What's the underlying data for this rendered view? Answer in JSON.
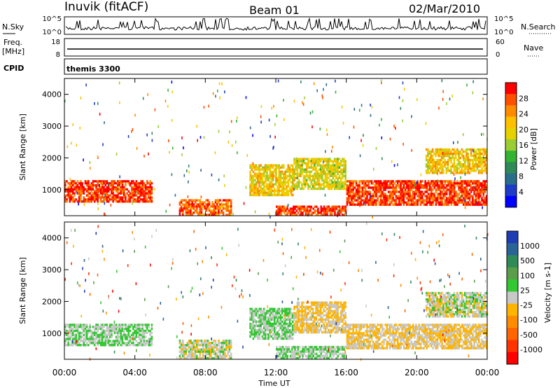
{
  "header": {
    "station": "Inuvik (fitACF)",
    "beam": "Beam 01",
    "date": "02/Mar/2010"
  },
  "noise_panel": {
    "left_label": "N.Sky",
    "left_ticks": [
      "10^5",
      "10^0"
    ],
    "right_ticks": [
      "10^5",
      "10^0"
    ],
    "right_label": "N.Search"
  },
  "freq_panel": {
    "left_label_1": "Freq.",
    "left_label_2": "[MHz]",
    "left_ticks": [
      "18",
      "8"
    ],
    "right_ticks": [
      "60",
      "0"
    ],
    "right_label": "Nave"
  },
  "cpid": {
    "label": "CPID",
    "value": "themis 3300"
  },
  "x_axis": {
    "label": "Time UT",
    "ticks": [
      "00:00",
      "04:00",
      "08:00",
      "12:00",
      "16:00",
      "20:00",
      "00:00"
    ]
  },
  "power_panel": {
    "ylabel": "Slant Range [km]",
    "yticks": [
      "4000",
      "3000",
      "2000",
      "1000"
    ],
    "colorbar_label": "Power [dB]",
    "colorbar_ticks": [
      "28",
      "24",
      "20",
      "16",
      "12",
      "8",
      "4"
    ],
    "colorbar_colors": [
      "#ff0000",
      "#ff5000",
      "#ff8c00",
      "#ffc000",
      "#e6d200",
      "#9acd32",
      "#32b432",
      "#2e8b57",
      "#2a6e8c",
      "#1e3cc8",
      "#0000ff"
    ]
  },
  "velocity_panel": {
    "ylabel": "Slant Range [km]",
    "yticks": [
      "4000",
      "3000",
      "2000",
      "1000"
    ],
    "colorbar_label": "Velocity [m s-1]",
    "colorbar_ticks": [
      "1000",
      "500",
      "100",
      "25",
      "-25",
      "-100",
      "-500",
      "-1000"
    ],
    "colorbar_colors": [
      "#1e3cb4",
      "#2a6496",
      "#2e8b57",
      "#5a9e4a",
      "#32c832",
      "#c8c8c8",
      "#ffb400",
      "#ff8c00",
      "#ff6400",
      "#ff3200",
      "#ff0000"
    ]
  },
  "chart_data": [
    {
      "type": "line",
      "title": "N.Sky / N.Search",
      "x_range_hours": [
        0,
        24
      ],
      "y_scale": "log",
      "ylim": [
        1,
        100000
      ],
      "series": [
        {
          "name": "N.Sky",
          "note_level": "mostly near 10^1 with frequent spikes to 10^5"
        }
      ]
    },
    {
      "type": "line",
      "title": "Freq. / Nave",
      "x_range_hours": [
        0,
        24
      ],
      "ylim": [
        8,
        18
      ],
      "series": [
        {
          "name": "Freq.",
          "values_mhz": [
            12,
            12,
            12,
            12,
            12,
            12,
            12
          ]
        }
      ]
    },
    {
      "type": "heatmap",
      "title": "Power [dB]",
      "x_range_hours": [
        0,
        24
      ],
      "ylim_km": [
        180,
        4500
      ],
      "clim": [
        0,
        30
      ],
      "regions": [
        {
          "t": [
            0,
            5
          ],
          "r": [
            600,
            1300
          ],
          "value": 28
        },
        {
          "t": [
            6.5,
            9.5
          ],
          "r": [
            180,
            700
          ],
          "value": 26
        },
        {
          "t": [
            10.5,
            13
          ],
          "r": [
            800,
            1800
          ],
          "value": 20
        },
        {
          "t": [
            12,
            16
          ],
          "r": [
            180,
            500
          ],
          "value": 28
        },
        {
          "t": [
            16,
            24
          ],
          "r": [
            500,
            1300
          ],
          "value": 28
        },
        {
          "t": [
            13,
            16
          ],
          "r": [
            1000,
            2000
          ],
          "value": 18
        },
        {
          "t": [
            20.5,
            24
          ],
          "r": [
            1500,
            2300
          ],
          "value": 20
        }
      ]
    },
    {
      "type": "heatmap",
      "title": "Velocity [m s-1]",
      "x_range_hours": [
        0,
        24
      ],
      "ylim_km": [
        180,
        4500
      ],
      "clim": [
        -1000,
        1000
      ],
      "regions": [
        {
          "t": [
            0,
            5
          ],
          "r": [
            600,
            1300
          ],
          "value": 100
        },
        {
          "t": [
            6.5,
            9.5
          ],
          "r": [
            180,
            800
          ],
          "value": 0
        },
        {
          "t": [
            10.5,
            13
          ],
          "r": [
            800,
            1800
          ],
          "value": 100
        },
        {
          "t": [
            12,
            16
          ],
          "r": [
            180,
            600
          ],
          "value": 100
        },
        {
          "t": [
            13,
            16
          ],
          "r": [
            1000,
            2000
          ],
          "value": -100
        },
        {
          "t": [
            16,
            24
          ],
          "r": [
            500,
            1300
          ],
          "value": -100
        },
        {
          "t": [
            20.5,
            24
          ],
          "r": [
            1500,
            2300
          ],
          "value": 0
        }
      ]
    }
  ]
}
